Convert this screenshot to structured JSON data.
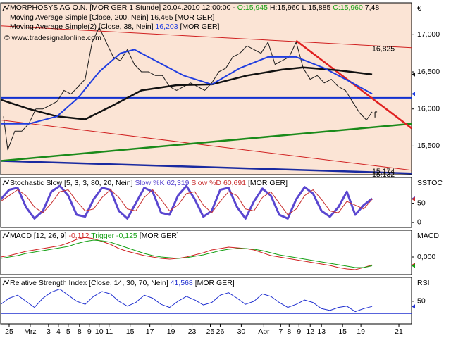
{
  "chart_data": [
    {
      "type": "line",
      "name": "MORPHOSYS AG O.N. [MOR GER  1 Stunde]",
      "date": "20.04.2010 12:00:00 -",
      "ohlc": [
        {
          "value": 15.945,
          "label": "O:15,945",
          "color": "#14a014"
        },
        {
          "value": 15.96,
          "label": "H:15,960",
          "color": "#000000"
        },
        {
          "value": 15.885,
          "label": "L:15,885",
          "color": "#000000"
        },
        {
          "value": 15.96,
          "label": "C:15,960",
          "color": "#14a014"
        }
      ],
      "extra": "7,48",
      "copyright": "© www.tradesignalonline.com",
      "panel_label": "€",
      "background": "#fbe4d5",
      "xlim": [
        0,
        292
      ],
      "ylim": [
        15.115,
        17.43
      ],
      "yticks": [
        {
          "value": 17,
          "label": "17,000"
        },
        {
          "value": 16.5,
          "label": "16,500"
        },
        {
          "value": 16,
          "label": "16,000"
        },
        {
          "value": 15.5,
          "label": "15,500"
        }
      ],
      "price": {
        "color": "#1a1a1a",
        "x": [
          2,
          5,
          10,
          15,
          20,
          25,
          30,
          35,
          40,
          45,
          50,
          55,
          60,
          65,
          70,
          75,
          80,
          85,
          90,
          95,
          100,
          105,
          110,
          115,
          120,
          125,
          130,
          135,
          140,
          145,
          150,
          155,
          160,
          165,
          170,
          175,
          180,
          185,
          190,
          195,
          200,
          205,
          210,
          215,
          220,
          225,
          230,
          235,
          240,
          245,
          250,
          255,
          260,
          264
        ],
        "values": [
          15.9,
          15.45,
          15.7,
          15.7,
          15.8,
          16.0,
          16.0,
          16.05,
          16.1,
          16.25,
          16.2,
          16.3,
          16.4,
          16.9,
          17.1,
          16.9,
          16.7,
          16.65,
          16.8,
          16.6,
          16.5,
          16.5,
          16.45,
          16.45,
          16.3,
          16.25,
          16.3,
          16.35,
          16.3,
          16.25,
          16.35,
          16.5,
          16.55,
          16.7,
          16.75,
          16.85,
          16.8,
          16.75,
          16.9,
          16.6,
          16.65,
          16.7,
          16.9,
          16.55,
          16.4,
          16.45,
          16.35,
          16.4,
          16.3,
          16.25,
          16.1,
          15.95,
          15.85,
          15.96
        ]
      },
      "series": [
        {
          "name": "Moving Average Simple [Close, 200, Nein]",
          "current": {
            "value": 16.465,
            "label": "16,465"
          },
          "suffix": "[MOR GER]",
          "color": "#111111",
          "width": 2.5,
          "x": [
            0,
            20,
            40,
            60,
            80,
            100,
            125,
            150,
            175,
            200,
            215,
            240,
            264
          ],
          "values": [
            16.125,
            16.0,
            15.9,
            15.86,
            16.05,
            16.25,
            16.32,
            16.33,
            16.45,
            16.53,
            16.56,
            16.52,
            16.465
          ]
        },
        {
          "name": "Moving Average Simple(2) [Close, 38, Nein]",
          "current": {
            "value": 16.203,
            "label": "16,203"
          },
          "suffix": "[MOR GER]",
          "color": "#1f3de0",
          "width": 2,
          "x": [
            0,
            20,
            40,
            55,
            70,
            85,
            95,
            110,
            130,
            150,
            170,
            190,
            210,
            230,
            250,
            264
          ],
          "values": [
            15.8,
            15.8,
            15.9,
            16.15,
            16.5,
            16.75,
            16.8,
            16.65,
            16.45,
            16.33,
            16.55,
            16.7,
            16.7,
            16.55,
            16.35,
            16.203
          ]
        }
      ],
      "trendlines": [
        {
          "color": "#d02020",
          "width": 1,
          "x": [
            0,
            292
          ],
          "values": [
            17.12,
            16.825
          ],
          "value_labels": [
            null,
            "16,825"
          ]
        },
        {
          "color": "#d02020",
          "width": 1,
          "x": [
            0,
            292
          ],
          "values": [
            15.85,
            15.174
          ],
          "value_labels": [
            null,
            "15,174"
          ]
        },
        {
          "color": "#1a2aa0",
          "width": 2.5,
          "x": [
            0,
            292
          ],
          "values": [
            15.3,
            15.132
          ],
          "value_labels": [
            null,
            "15,132"
          ]
        },
        {
          "color": "#1030d0",
          "width": 2,
          "x": [
            0,
            292
          ],
          "values": [
            16.15,
            16.15
          ]
        },
        {
          "color": "#1a8a1a",
          "width": 2.5,
          "x": [
            0,
            292
          ],
          "values": [
            15.3,
            15.8
          ]
        },
        {
          "color": "#e02020",
          "width": 2.5,
          "x": [
            210,
            292
          ],
          "values": [
            16.92,
            15.74
          ]
        }
      ]
    },
    {
      "type": "line",
      "title": "Stochastic Slow [5, 3, 3, 80, 20, Nein]",
      "suffix": "[MOR GER]",
      "panel_label": "SSTOC",
      "background": "#ffffff",
      "xlim": [
        0,
        292
      ],
      "ylim": [
        -13,
        117
      ],
      "yticks": [
        50,
        0
      ],
      "series": [
        {
          "name": "Slow %K",
          "current": {
            "value": 62.319,
            "label": "62,319"
          },
          "color": "#5a46d0",
          "width": 3,
          "x": [
            0,
            6,
            12,
            18,
            24,
            30,
            36,
            42,
            48,
            54,
            60,
            66,
            72,
            78,
            84,
            90,
            96,
            102,
            108,
            114,
            120,
            126,
            132,
            138,
            144,
            150,
            156,
            162,
            168,
            174,
            180,
            186,
            192,
            198,
            204,
            210,
            216,
            222,
            228,
            234,
            240,
            246,
            252,
            258,
            264
          ],
          "values": [
            60,
            85,
            90,
            40,
            10,
            30,
            80,
            95,
            70,
            20,
            15,
            60,
            90,
            85,
            30,
            10,
            50,
            90,
            80,
            25,
            20,
            70,
            95,
            60,
            15,
            30,
            85,
            90,
            40,
            10,
            55,
            88,
            70,
            20,
            10,
            60,
            92,
            75,
            30,
            15,
            40,
            80,
            20,
            45,
            62.319
          ]
        },
        {
          "name": "Slow %D",
          "current": {
            "value": 60.691,
            "label": "60,691"
          },
          "color": "#c83030",
          "width": 1,
          "x": [
            0,
            6,
            12,
            18,
            24,
            30,
            36,
            42,
            48,
            54,
            60,
            66,
            72,
            78,
            84,
            90,
            96,
            102,
            108,
            114,
            120,
            126,
            132,
            138,
            144,
            150,
            156,
            162,
            168,
            174,
            180,
            186,
            192,
            198,
            204,
            210,
            216,
            222,
            228,
            234,
            240,
            246,
            252,
            258,
            264
          ],
          "values": [
            55,
            70,
            85,
            70,
            40,
            25,
            50,
            80,
            85,
            55,
            30,
            35,
            65,
            85,
            65,
            35,
            30,
            65,
            85,
            60,
            30,
            45,
            75,
            80,
            45,
            25,
            55,
            80,
            70,
            35,
            30,
            65,
            80,
            50,
            20,
            35,
            70,
            85,
            60,
            30,
            25,
            55,
            45,
            35,
            60.691
          ]
        }
      ]
    },
    {
      "type": "line",
      "title": "MACD [12, 26, 9]",
      "suffix": "[MOR GER]",
      "panel_label": "MACD",
      "background": "#ffffff",
      "xlim": [
        0,
        292
      ],
      "ylim": [
        -0.25,
        0.38
      ],
      "yticks": [
        {
          "value": 0,
          "label": "0,000"
        }
      ],
      "series": [
        {
          "name": "",
          "current": {
            "value": -0.112,
            "label": "-0,112"
          },
          "color": "#d02020",
          "width": 1,
          "x": [
            0,
            6,
            12,
            18,
            24,
            30,
            36,
            42,
            48,
            54,
            60,
            66,
            72,
            78,
            84,
            90,
            96,
            102,
            108,
            114,
            120,
            126,
            132,
            138,
            144,
            150,
            156,
            162,
            168,
            174,
            180,
            186,
            192,
            198,
            204,
            210,
            216,
            222,
            228,
            234,
            240,
            246,
            252,
            258,
            264
          ],
          "values": [
            0,
            0.02,
            0.05,
            0.08,
            0.1,
            0.12,
            0.14,
            0.16,
            0.2,
            0.25,
            0.28,
            0.26,
            0.22,
            0.18,
            0.12,
            0.08,
            0.05,
            0.02,
            0,
            -0.02,
            -0.03,
            -0.02,
            0,
            0.03,
            0.06,
            0.1,
            0.12,
            0.14,
            0.13,
            0.12,
            0.1,
            0.06,
            0.02,
            0,
            -0.02,
            -0.04,
            -0.06,
            -0.08,
            -0.1,
            -0.12,
            -0.15,
            -0.17,
            -0.18,
            -0.15,
            -0.112
          ]
        },
        {
          "name": "Trigger",
          "current": {
            "value": -0.125,
            "label": "-0,125"
          },
          "color": "#14a014",
          "width": 1,
          "x": [
            0,
            6,
            12,
            18,
            24,
            30,
            36,
            42,
            48,
            54,
            60,
            66,
            72,
            78,
            84,
            90,
            96,
            102,
            108,
            114,
            120,
            126,
            132,
            138,
            144,
            150,
            156,
            162,
            168,
            174,
            180,
            186,
            192,
            198,
            204,
            210,
            216,
            222,
            228,
            234,
            240,
            246,
            252,
            258,
            264
          ],
          "values": [
            -0.02,
            0,
            0.02,
            0.05,
            0.07,
            0.09,
            0.11,
            0.13,
            0.15,
            0.19,
            0.22,
            0.24,
            0.23,
            0.21,
            0.17,
            0.13,
            0.09,
            0.05,
            0.02,
            0,
            -0.01,
            -0.02,
            -0.01,
            0.01,
            0.03,
            0.06,
            0.09,
            0.11,
            0.12,
            0.12,
            0.11,
            0.09,
            0.06,
            0.03,
            0.01,
            -0.01,
            -0.03,
            -0.05,
            -0.07,
            -0.09,
            -0.11,
            -0.13,
            -0.15,
            -0.15,
            -0.125
          ]
        }
      ]
    },
    {
      "type": "line",
      "title": "Relative Strength Index [Close, 14, 30, 70, Nein]",
      "suffix": "[MOR GER]",
      "panel_label": "RSI",
      "background": "#ffffff",
      "xlim": [
        0,
        292
      ],
      "ylim": [
        13,
        89
      ],
      "yticks": [
        50
      ],
      "levels": [
        30,
        70
      ],
      "level_color": "#2030d0",
      "series": [
        {
          "name": "",
          "current": {
            "value": 41.568,
            "label": "41,568"
          },
          "color": "#2030d0",
          "width": 1,
          "x": [
            0,
            6,
            12,
            18,
            24,
            30,
            36,
            42,
            48,
            54,
            60,
            66,
            72,
            78,
            84,
            90,
            96,
            102,
            108,
            114,
            120,
            126,
            132,
            138,
            144,
            150,
            156,
            162,
            168,
            174,
            180,
            186,
            192,
            198,
            204,
            210,
            216,
            222,
            228,
            234,
            240,
            246,
            252,
            258,
            264
          ],
          "values": [
            45,
            55,
            60,
            50,
            40,
            55,
            65,
            70,
            60,
            50,
            45,
            58,
            66,
            62,
            50,
            42,
            48,
            60,
            55,
            45,
            40,
            50,
            58,
            52,
            44,
            48,
            60,
            64,
            55,
            45,
            50,
            62,
            58,
            48,
            40,
            45,
            52,
            48,
            38,
            35,
            40,
            42,
            33,
            38,
            41.568
          ]
        }
      ],
      "xticks": [
        {
          "value": 6,
          "label": "25"
        },
        {
          "value": 21,
          "label": "Mrz"
        },
        {
          "value": 34,
          "label": "3"
        },
        {
          "value": 41,
          "label": "4"
        },
        {
          "value": 48,
          "label": "5"
        },
        {
          "value": 56,
          "label": "8"
        },
        {
          "value": 63,
          "label": "9"
        },
        {
          "value": 70,
          "label": "10"
        },
        {
          "value": 77,
          "label": "11"
        },
        {
          "value": 92,
          "label": "15"
        },
        {
          "value": 106,
          "label": "17"
        },
        {
          "value": 121,
          "label": "19"
        },
        {
          "value": 136,
          "label": "23"
        },
        {
          "value": 149,
          "label": "25"
        },
        {
          "value": 156,
          "label": "26"
        },
        {
          "value": 171,
          "label": "30"
        },
        {
          "value": 187,
          "label": "Apr"
        },
        {
          "value": 199,
          "label": "7"
        },
        {
          "value": 205,
          "label": "8"
        },
        {
          "value": 212,
          "label": "9"
        },
        {
          "value": 220,
          "label": "12"
        },
        {
          "value": 228,
          "label": "13"
        },
        {
          "value": 243,
          "label": "15"
        },
        {
          "value": 256,
          "label": "19"
        },
        {
          "value": 283,
          "label": "21"
        }
      ]
    }
  ]
}
